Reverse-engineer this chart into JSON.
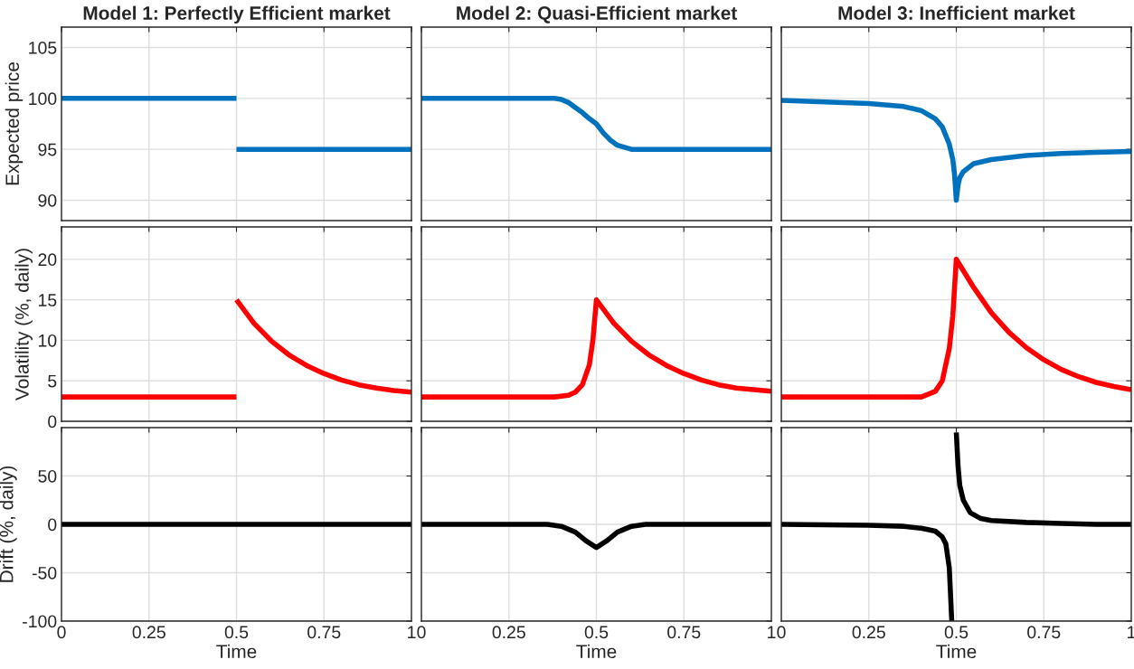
{
  "chart_data": [
    {
      "type": "line",
      "title": "Model 1: Perfectly Efficient market",
      "ylabel": "Expected price",
      "series": [
        {
          "color": "#0072bd",
          "x": [
            0,
            0.5
          ],
          "values": [
            100,
            100
          ]
        },
        {
          "color": "#0072bd",
          "x": [
            0.5,
            1
          ],
          "values": [
            95,
            95
          ]
        }
      ],
      "xlim": [
        0,
        1
      ],
      "xticks": [
        0,
        0.25,
        0.5,
        0.75,
        1
      ],
      "ylim": [
        88,
        107
      ],
      "yticks": [
        90,
        95,
        100,
        105
      ],
      "grid": true,
      "tick_labels": "y"
    },
    {
      "type": "line",
      "title": "Model 2: Quasi-Efficient market",
      "x": [
        0,
        0.38,
        0.4,
        0.42,
        0.44,
        0.46,
        0.48,
        0.5,
        0.52,
        0.54,
        0.56,
        0.58,
        0.6,
        0.65,
        1
      ],
      "series": [
        {
          "color": "#0072bd",
          "values": [
            100,
            100,
            99.9,
            99.6,
            99.1,
            98.6,
            98,
            97.5,
            96.6,
            95.9,
            95.4,
            95.2,
            95,
            95,
            95
          ]
        }
      ],
      "xlim": [
        0,
        1
      ],
      "xticks": [
        0,
        0.25,
        0.5,
        0.75,
        1
      ],
      "ylim": [
        88,
        107
      ],
      "yticks": [
        90,
        95,
        100,
        105
      ],
      "grid": true,
      "tick_labels": false
    },
    {
      "type": "line",
      "title": "Model 3: Inefficient market",
      "x": [
        0,
        0.25,
        0.35,
        0.4,
        0.44,
        0.46,
        0.48,
        0.49,
        0.495,
        0.5,
        0.505,
        0.51,
        0.52,
        0.55,
        0.6,
        0.7,
        0.8,
        0.9,
        1
      ],
      "series": [
        {
          "color": "#0072bd",
          "values": [
            99.8,
            99.5,
            99.2,
            98.8,
            98,
            97.2,
            95.5,
            94,
            92.5,
            90,
            91.5,
            92.2,
            92.8,
            93.6,
            94,
            94.4,
            94.6,
            94.7,
            94.8
          ]
        }
      ],
      "xlim": [
        0,
        1
      ],
      "xticks": [
        0,
        0.25,
        0.5,
        0.75,
        1
      ],
      "ylim": [
        88,
        107
      ],
      "yticks": [
        90,
        95,
        100,
        105
      ],
      "grid": true,
      "tick_labels": false
    },
    {
      "type": "line",
      "ylabel": "Volatility (%, daily)",
      "series": [
        {
          "color": "#ff0000",
          "x": [
            0,
            0.5
          ],
          "values": [
            3,
            3
          ]
        },
        {
          "color": "#ff0000",
          "x": [
            0.5,
            0.55,
            0.6,
            0.65,
            0.7,
            0.75,
            0.8,
            0.85,
            0.9,
            0.95,
            1
          ],
          "values": [
            15,
            12.1,
            9.9,
            8.2,
            6.9,
            5.9,
            5.1,
            4.5,
            4.1,
            3.8,
            3.6
          ]
        }
      ],
      "xlim": [
        0,
        1
      ],
      "xticks": [
        0,
        0.25,
        0.5,
        0.75,
        1
      ],
      "ylim": [
        0,
        24
      ],
      "yticks": [
        0,
        5,
        10,
        15,
        20
      ],
      "grid": true,
      "tick_labels": "y"
    },
    {
      "type": "line",
      "x": [
        0,
        0.38,
        0.42,
        0.44,
        0.46,
        0.48,
        0.49,
        0.5,
        0.55,
        0.6,
        0.65,
        0.7,
        0.75,
        0.8,
        0.85,
        0.9,
        0.95,
        1
      ],
      "series": [
        {
          "color": "#ff0000",
          "values": [
            3,
            3,
            3.2,
            3.6,
            4.5,
            7,
            10,
            15,
            12.1,
            9.9,
            8.2,
            6.9,
            5.9,
            5.1,
            4.5,
            4.1,
            3.9,
            3.7
          ]
        }
      ],
      "xlim": [
        0,
        1
      ],
      "xticks": [
        0,
        0.25,
        0.5,
        0.75,
        1
      ],
      "ylim": [
        0,
        24
      ],
      "yticks": [
        0,
        5,
        10,
        15,
        20
      ],
      "grid": true,
      "tick_labels": false
    },
    {
      "type": "line",
      "x": [
        0,
        0.4,
        0.44,
        0.46,
        0.48,
        0.49,
        0.5,
        0.55,
        0.6,
        0.65,
        0.7,
        0.75,
        0.8,
        0.85,
        0.9,
        0.95,
        1
      ],
      "series": [
        {
          "color": "#ff0000",
          "values": [
            3,
            3,
            3.7,
            5,
            9,
            13,
            20,
            16.5,
            13.4,
            11,
            9.1,
            7.6,
            6.4,
            5.5,
            4.8,
            4.3,
            3.9
          ]
        }
      ],
      "xlim": [
        0,
        1
      ],
      "xticks": [
        0,
        0.25,
        0.5,
        0.75,
        1
      ],
      "ylim": [
        0,
        24
      ],
      "yticks": [
        0,
        5,
        10,
        15,
        20
      ],
      "grid": true,
      "tick_labels": false
    },
    {
      "type": "line",
      "ylabel": "Drift (%, daily)",
      "xlabel": "Time",
      "x": [
        0,
        1
      ],
      "series": [
        {
          "color": "#000000",
          "values": [
            0,
            0
          ]
        }
      ],
      "xlim": [
        0,
        1
      ],
      "xticks": [
        0,
        0.25,
        0.5,
        0.75,
        1
      ],
      "ylim": [
        -100,
        100
      ],
      "yticks": [
        -100,
        -50,
        0,
        50
      ],
      "grid": true
    },
    {
      "type": "line",
      "xlabel": "Time",
      "x": [
        0,
        0.36,
        0.4,
        0.44,
        0.47,
        0.5,
        0.53,
        0.56,
        0.6,
        0.64,
        1
      ],
      "series": [
        {
          "color": "#000000",
          "values": [
            0,
            0,
            -2,
            -8,
            -17,
            -24,
            -17,
            -8,
            -2,
            0,
            0
          ]
        }
      ],
      "xlim": [
        0,
        1
      ],
      "xticks": [
        0,
        0.25,
        0.5,
        0.75,
        1
      ],
      "ylim": [
        -100,
        100
      ],
      "yticks": [
        -100,
        -50,
        0,
        50
      ],
      "grid": true,
      "tick_labels": "x"
    },
    {
      "type": "line",
      "xlabel": "Time",
      "series": [
        {
          "color": "#000000",
          "x": [
            0,
            0.25,
            0.35,
            0.4,
            0.44,
            0.46,
            0.47,
            0.48,
            0.487
          ],
          "values": [
            0,
            -1,
            -2,
            -4,
            -7,
            -13,
            -20,
            -45,
            -100
          ]
        },
        {
          "color": "#000000",
          "x": [
            0.5,
            0.505,
            0.51,
            0.52,
            0.54,
            0.57,
            0.6,
            0.7,
            0.8,
            0.9,
            1
          ],
          "values": [
            95,
            60,
            40,
            25,
            12,
            6,
            4,
            2,
            1,
            0,
            0
          ]
        }
      ],
      "xlim": [
        0,
        1
      ],
      "xticks": [
        0,
        0.25,
        0.5,
        0.75,
        1
      ],
      "ylim": [
        -100,
        100
      ],
      "yticks": [
        -100,
        -50,
        0,
        50
      ],
      "grid": true,
      "tick_labels": "x"
    }
  ]
}
